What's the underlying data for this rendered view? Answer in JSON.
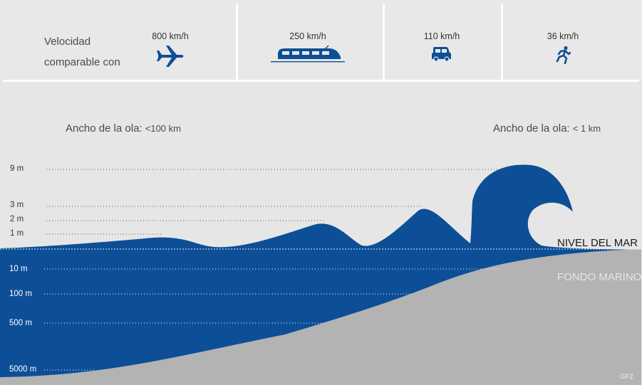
{
  "header": {
    "title_line1": "Velocidad",
    "title_line2": "comparable con",
    "items": [
      {
        "speed": "800 km/h",
        "icon": "airplane-icon"
      },
      {
        "speed": "250 km/h",
        "icon": "train-icon"
      },
      {
        "speed": "110 km/h",
        "icon": "car-icon"
      },
      {
        "speed": "36 km/h",
        "icon": "runner-icon"
      }
    ]
  },
  "wave_width": {
    "left_label": "Ancho de la ola:",
    "left_value": "<100 km",
    "right_label": "Ancho de la ola:",
    "right_value": "< 1 km"
  },
  "heights": [
    "9 m",
    "3 m",
    "2 m",
    "1 m"
  ],
  "depths": [
    "10 m",
    "100 m",
    "500 m",
    "5000 m"
  ],
  "labels": {
    "sea_level": "NIVEL DEL MAR",
    "seabed": "FONDO MARINO",
    "credit": "GFZ"
  },
  "colors": {
    "water": "#0d4f97",
    "seabed": "#b3b3b3",
    "background": "#e6e6e6",
    "icon": "#0d4f97"
  }
}
